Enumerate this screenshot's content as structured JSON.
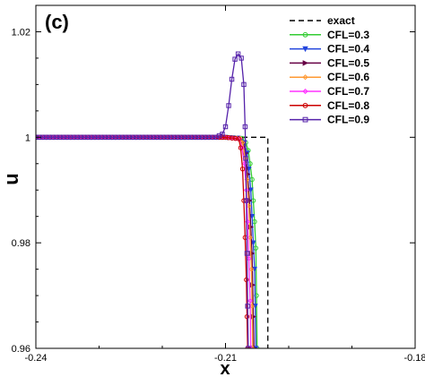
{
  "chart_data": {
    "type": "line",
    "panel_label": "(c)",
    "xlabel": "x",
    "ylabel": "u",
    "xlim": [
      -0.24,
      -0.18
    ],
    "ylim": [
      0.96,
      1.025
    ],
    "x_ticks": [
      -0.24,
      -0.21,
      -0.18
    ],
    "x_tick_labels": [
      "-0.24",
      "-0.21",
      "-0.18"
    ],
    "y_ticks": [
      0.96,
      0.98,
      1.0,
      1.02
    ],
    "y_tick_labels": [
      "0.96",
      "0.98",
      "1",
      "1.02"
    ],
    "grid": false,
    "legend_position": "top-right",
    "series": [
      {
        "name": "exact",
        "color": "#000000",
        "style": "dashed",
        "marker": "none",
        "x": [
          -0.24,
          -0.2033,
          -0.2033
        ],
        "y": [
          1.0,
          1.0,
          0.96
        ]
      },
      {
        "name": "CFL=0.3",
        "color": "#33cc33",
        "style": "solid",
        "marker": "circle",
        "x": [
          -0.24,
          -0.21,
          -0.2074,
          -0.2068,
          -0.2064,
          -0.2061,
          -0.2058,
          -0.2056,
          -0.2054,
          -0.2052,
          -0.2051,
          -0.205
        ],
        "y": [
          1.0,
          1.0,
          0.9998,
          0.999,
          0.9975,
          0.995,
          0.992,
          0.988,
          0.984,
          0.979,
          0.97,
          0.96
        ]
      },
      {
        "name": "CFL=0.4",
        "color": "#2244dd",
        "style": "solid",
        "marker": "triangle-down",
        "x": [
          -0.24,
          -0.21,
          -0.2075,
          -0.207,
          -0.2066,
          -0.2063,
          -0.206,
          -0.2058,
          -0.2056,
          -0.2054,
          -0.2053,
          -0.2052
        ],
        "y": [
          1.0,
          1.0,
          0.9998,
          0.999,
          0.997,
          0.994,
          0.99,
          0.985,
          0.98,
          0.975,
          0.968,
          0.96
        ]
      },
      {
        "name": "CFL=0.5",
        "color": "#660044",
        "style": "solid",
        "marker": "triangle-right",
        "x": [
          -0.24,
          -0.21,
          -0.2076,
          -0.2072,
          -0.2068,
          -0.2065,
          -0.2062,
          -0.206,
          -0.2058,
          -0.2057,
          -0.2056,
          -0.2055
        ],
        "y": [
          1.0,
          1.0,
          0.9998,
          0.999,
          0.997,
          0.993,
          0.988,
          0.983,
          0.978,
          0.972,
          0.966,
          0.96
        ]
      },
      {
        "name": "CFL=0.6",
        "color": "#ff9933",
        "style": "solid",
        "marker": "diamond",
        "x": [
          -0.24,
          -0.21,
          -0.2077,
          -0.2073,
          -0.2069,
          -0.2066,
          -0.2063,
          -0.2061,
          -0.2059,
          -0.2058,
          -0.2057
        ],
        "y": [
          1.0,
          1.0,
          0.9998,
          0.999,
          0.996,
          0.992,
          0.987,
          0.981,
          0.975,
          0.968,
          0.96
        ]
      },
      {
        "name": "CFL=0.7",
        "color": "#ff33ff",
        "style": "solid",
        "marker": "diamond",
        "x": [
          -0.24,
          -0.21,
          -0.2078,
          -0.2074,
          -0.207,
          -0.2067,
          -0.2065,
          -0.2063,
          -0.2061,
          -0.206
        ],
        "y": [
          1.0,
          1.0,
          0.9997,
          0.998,
          0.995,
          0.99,
          0.984,
          0.977,
          0.969,
          0.96
        ]
      },
      {
        "name": "CFL=0.8",
        "color": "#cc0000",
        "style": "solid",
        "marker": "circle",
        "x": [
          -0.24,
          -0.21,
          -0.2079,
          -0.2076,
          -0.2073,
          -0.2071,
          -0.2069,
          -0.2067,
          -0.2066,
          -0.2065
        ],
        "y": [
          1.0,
          1.0,
          0.9997,
          0.998,
          0.994,
          0.988,
          0.981,
          0.973,
          0.966,
          0.96
        ]
      },
      {
        "name": "CFL=0.9",
        "color": "#5522aa",
        "style": "solid",
        "marker": "square",
        "x": [
          -0.24,
          -0.2115,
          -0.2105,
          -0.21,
          -0.2095,
          -0.209,
          -0.2085,
          -0.208,
          -0.2075,
          -0.2071,
          -0.2069,
          -0.2068,
          -0.2067,
          -0.2066,
          -0.2065,
          -0.2064
        ],
        "y": [
          1.0,
          1.0,
          1.0006,
          1.002,
          1.006,
          1.011,
          1.0148,
          1.0158,
          1.015,
          1.01,
          1.002,
          0.996,
          0.988,
          0.978,
          0.968,
          0.96
        ]
      }
    ]
  }
}
